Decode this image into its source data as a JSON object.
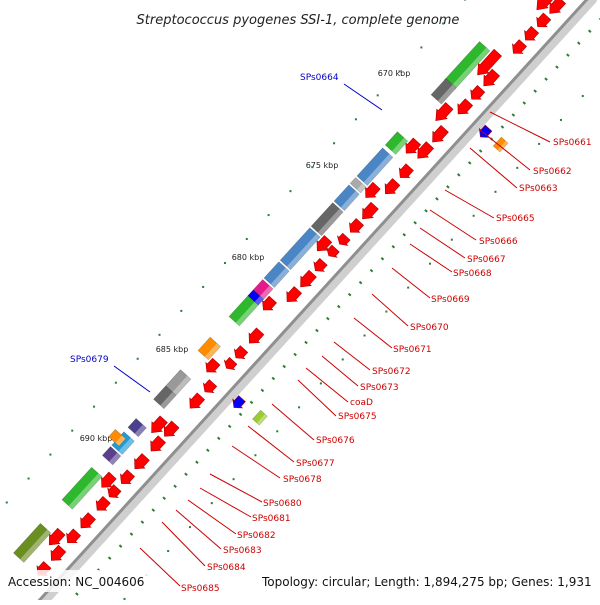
{
  "title": "Streptococcus pyogenes SSI-1, complete genome",
  "footer": {
    "accession": "Accession: NC_004606",
    "summary": "Topology: circular; Length: 1,894,275 bp; Genes: 1,931"
  },
  "colors": {
    "forward_gene": "#ff0000",
    "label_red": "#cc0000",
    "label_blue": "#0000cc",
    "tick": "#2e7d32",
    "backbone": "#999999"
  },
  "ticks": [
    {
      "label": "670 kbp",
      "major": true
    },
    {
      "label": "675 kbp",
      "major": true
    },
    {
      "label": "680 kbp",
      "major": true
    },
    {
      "label": "685 kbp",
      "major": true
    },
    {
      "label": "690 kbp",
      "major": true
    }
  ],
  "outer_labels": [
    {
      "text": "SPs0664",
      "color": "blue"
    },
    {
      "text": "SPs0679",
      "color": "blue"
    }
  ],
  "inner_labels": [
    "SPs0661",
    "SPs0662",
    "SPs0663",
    "SPs0665",
    "SPs0666",
    "SPs0667",
    "SPs0668",
    "SPs0669",
    "SPs0670",
    "SPs0671",
    "SPs0672",
    "SPs0673",
    "coaD",
    "SPs0675",
    "SPs0676",
    "SPs0677",
    "SPs0678",
    "SPs0680",
    "SPs0681",
    "SPs0682",
    "SPs0683",
    "SPs0684",
    "SPs0685"
  ]
}
